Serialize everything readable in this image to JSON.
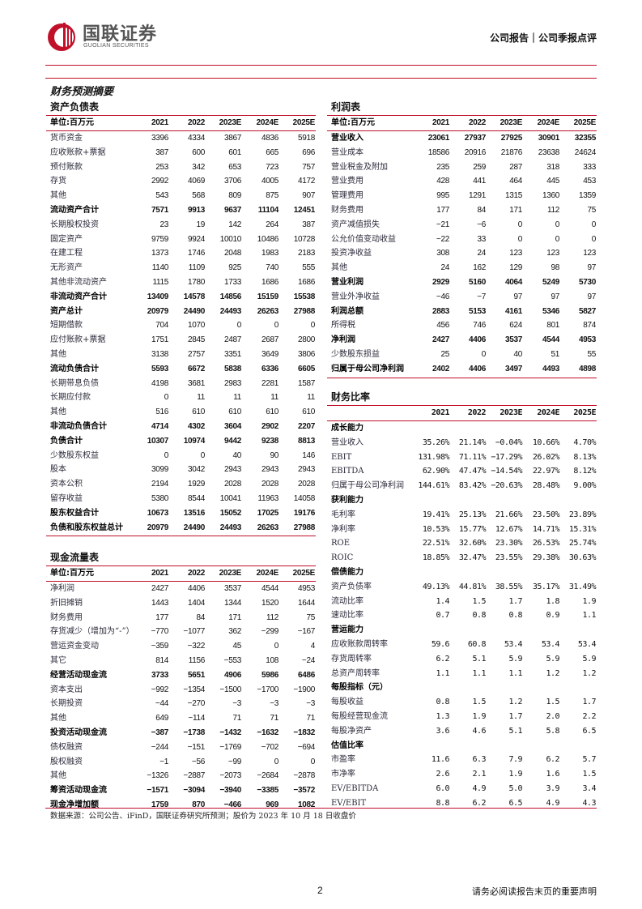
{
  "header": {
    "logo_cn": "国联证券",
    "logo_en": "GUOLIAN SECURITIES",
    "category": "公司报告｜公司季报点评",
    "brand_color": "#c0102a"
  },
  "section_title": "财务预测摘要",
  "years": [
    "2021",
    "2022",
    "2023E",
    "2024E",
    "2025E"
  ],
  "balance_sheet": {
    "title": "资产负债表",
    "unit": "单位:百万元",
    "rows": [
      {
        "label": "货币资金",
        "values": [
          "3396",
          "4334",
          "3867",
          "4836",
          "5918"
        ]
      },
      {
        "label": "应收账款+票据",
        "values": [
          "387",
          "600",
          "601",
          "665",
          "696"
        ]
      },
      {
        "label": "预付账款",
        "values": [
          "253",
          "342",
          "653",
          "723",
          "757"
        ]
      },
      {
        "label": "存货",
        "values": [
          "2992",
          "4069",
          "3706",
          "4005",
          "4172"
        ]
      },
      {
        "label": "其他",
        "values": [
          "543",
          "568",
          "809",
          "875",
          "907"
        ]
      },
      {
        "label": "流动资产合计",
        "values": [
          "7571",
          "9913",
          "9637",
          "11104",
          "12451"
        ],
        "bold": true
      },
      {
        "label": "长期股权投资",
        "values": [
          "23",
          "19",
          "142",
          "264",
          "387"
        ]
      },
      {
        "label": "固定资产",
        "values": [
          "9759",
          "9924",
          "10010",
          "10486",
          "10728"
        ]
      },
      {
        "label": "在建工程",
        "values": [
          "1373",
          "1746",
          "2048",
          "1983",
          "2183"
        ]
      },
      {
        "label": "无形资产",
        "values": [
          "1140",
          "1109",
          "925",
          "740",
          "555"
        ]
      },
      {
        "label": "其他非流动资产",
        "values": [
          "1115",
          "1780",
          "1733",
          "1686",
          "1686"
        ]
      },
      {
        "label": "非流动资产合计",
        "values": [
          "13409",
          "14578",
          "14856",
          "15159",
          "15538"
        ],
        "bold": true
      },
      {
        "label": "资产总计",
        "values": [
          "20979",
          "24490",
          "24493",
          "26263",
          "27988"
        ],
        "bold": true
      },
      {
        "label": "短期借款",
        "values": [
          "704",
          "1070",
          "0",
          "0",
          "0"
        ]
      },
      {
        "label": "应付账款+票据",
        "values": [
          "1751",
          "2845",
          "2487",
          "2687",
          "2800"
        ]
      },
      {
        "label": "其他",
        "values": [
          "3138",
          "2757",
          "3351",
          "3649",
          "3806"
        ]
      },
      {
        "label": "流动负债合计",
        "values": [
          "5593",
          "6672",
          "5838",
          "6336",
          "6605"
        ],
        "bold": true
      },
      {
        "label": "长期带息负债",
        "values": [
          "4198",
          "3681",
          "2983",
          "2281",
          "1587"
        ]
      },
      {
        "label": "长期应付款",
        "values": [
          "0",
          "11",
          "11",
          "11",
          "11"
        ]
      },
      {
        "label": "其他",
        "values": [
          "516",
          "610",
          "610",
          "610",
          "610"
        ]
      },
      {
        "label": "非流动负债合计",
        "values": [
          "4714",
          "4302",
          "3604",
          "2902",
          "2207"
        ],
        "bold": true
      },
      {
        "label": "负债合计",
        "values": [
          "10307",
          "10974",
          "9442",
          "9238",
          "8813"
        ],
        "bold": true
      },
      {
        "label": "少数股东权益",
        "values": [
          "0",
          "0",
          "40",
          "90",
          "146"
        ]
      },
      {
        "label": "股本",
        "values": [
          "3099",
          "3042",
          "2943",
          "2943",
          "2943"
        ]
      },
      {
        "label": "资本公积",
        "values": [
          "2194",
          "1929",
          "2028",
          "2028",
          "2028"
        ]
      },
      {
        "label": "留存收益",
        "values": [
          "5380",
          "8544",
          "10041",
          "11963",
          "14058"
        ]
      },
      {
        "label": "股东权益合计",
        "values": [
          "10673",
          "13516",
          "15052",
          "17025",
          "19176"
        ],
        "bold": true
      },
      {
        "label": "负债和股东权益总计",
        "values": [
          "20979",
          "24490",
          "24493",
          "26263",
          "27988"
        ],
        "bold": true
      }
    ]
  },
  "income_statement": {
    "title": "利润表",
    "unit": "单位:百万元",
    "rows": [
      {
        "label": "营业收入",
        "values": [
          "23061",
          "27937",
          "27925",
          "30901",
          "32355"
        ],
        "bold": true
      },
      {
        "label": "营业成本",
        "values": [
          "18586",
          "20916",
          "21876",
          "23638",
          "24624"
        ]
      },
      {
        "label": "营业税金及附加",
        "values": [
          "235",
          "259",
          "287",
          "318",
          "333"
        ]
      },
      {
        "label": "营业费用",
        "values": [
          "428",
          "441",
          "464",
          "445",
          "453"
        ]
      },
      {
        "label": "管理费用",
        "values": [
          "995",
          "1291",
          "1315",
          "1360",
          "1359"
        ]
      },
      {
        "label": "财务费用",
        "values": [
          "177",
          "84",
          "171",
          "112",
          "75"
        ]
      },
      {
        "label": "资产减值损失",
        "values": [
          "−21",
          "−6",
          "0",
          "0",
          "0"
        ]
      },
      {
        "label": "公允价值变动收益",
        "values": [
          "−22",
          "33",
          "0",
          "0",
          "0"
        ]
      },
      {
        "label": "投资净收益",
        "values": [
          "308",
          "24",
          "123",
          "123",
          "123"
        ]
      },
      {
        "label": "其他",
        "values": [
          "24",
          "162",
          "129",
          "98",
          "97"
        ]
      },
      {
        "label": "营业利润",
        "values": [
          "2929",
          "5160",
          "4064",
          "5249",
          "5730"
        ],
        "bold": true
      },
      {
        "label": "营业外净收益",
        "values": [
          "−46",
          "−7",
          "97",
          "97",
          "97"
        ]
      },
      {
        "label": "利润总额",
        "values": [
          "2883",
          "5153",
          "4161",
          "5346",
          "5827"
        ],
        "bold": true
      },
      {
        "label": "所得税",
        "values": [
          "456",
          "746",
          "624",
          "801",
          "874"
        ]
      },
      {
        "label": "净利润",
        "values": [
          "2427",
          "4406",
          "3537",
          "4544",
          "4953"
        ],
        "bold": true
      },
      {
        "label": "少数股东损益",
        "values": [
          "25",
          "0",
          "40",
          "51",
          "55"
        ]
      },
      {
        "label": "归属于母公司净利润",
        "values": [
          "2402",
          "4406",
          "3497",
          "4493",
          "4898"
        ],
        "bold": true
      }
    ]
  },
  "ratios": {
    "title": "财务比率",
    "rows": [
      {
        "label": "成长能力",
        "section": true
      },
      {
        "label": "营业收入",
        "values": [
          "35.26%",
          "21.14%",
          "−0.04%",
          "10.66%",
          "4.70%"
        ]
      },
      {
        "label": "EBIT",
        "values": [
          "131.98%",
          "71.11%",
          "−17.29%",
          "26.02%",
          "8.13%"
        ]
      },
      {
        "label": "EBITDA",
        "values": [
          "62.90%",
          "47.47%",
          "−14.54%",
          "22.97%",
          "8.12%"
        ]
      },
      {
        "label": "归属于母公司净利润",
        "values": [
          "144.61%",
          "83.42%",
          "−20.63%",
          "28.48%",
          "9.00%"
        ]
      },
      {
        "label": "获利能力",
        "section": true
      },
      {
        "label": "毛利率",
        "values": [
          "19.41%",
          "25.13%",
          "21.66%",
          "23.50%",
          "23.89%"
        ]
      },
      {
        "label": "净利率",
        "values": [
          "10.53%",
          "15.77%",
          "12.67%",
          "14.71%",
          "15.31%"
        ]
      },
      {
        "label": "ROE",
        "values": [
          "22.51%",
          "32.60%",
          "23.30%",
          "26.53%",
          "25.74%"
        ]
      },
      {
        "label": "ROIC",
        "values": [
          "18.85%",
          "32.47%",
          "23.55%",
          "29.38%",
          "30.63%"
        ]
      },
      {
        "label": "偿债能力",
        "section": true
      },
      {
        "label": "资产负债率",
        "values": [
          "49.13%",
          "44.81%",
          "38.55%",
          "35.17%",
          "31.49%"
        ]
      },
      {
        "label": "流动比率",
        "values": [
          "1.4",
          "1.5",
          "1.7",
          "1.8",
          "1.9"
        ]
      },
      {
        "label": "速动比率",
        "values": [
          "0.7",
          "0.8",
          "0.8",
          "0.9",
          "1.1"
        ]
      },
      {
        "label": "营运能力",
        "section": true
      },
      {
        "label": "应收账款周转率",
        "values": [
          "59.6",
          "60.8",
          "53.4",
          "53.4",
          "53.4"
        ]
      },
      {
        "label": "存货周转率",
        "values": [
          "6.2",
          "5.1",
          "5.9",
          "5.9",
          "5.9"
        ]
      },
      {
        "label": "总资产周转率",
        "values": [
          "1.1",
          "1.1",
          "1.1",
          "1.2",
          "1.2"
        ]
      },
      {
        "label": "每股指标（元）",
        "section": true
      },
      {
        "label": "每股收益",
        "values": [
          "0.8",
          "1.5",
          "1.2",
          "1.5",
          "1.7"
        ]
      },
      {
        "label": "每股经营现金流",
        "values": [
          "1.3",
          "1.9",
          "1.7",
          "2.0",
          "2.2"
        ]
      },
      {
        "label": "每股净资产",
        "values": [
          "3.6",
          "4.6",
          "5.1",
          "5.8",
          "6.5"
        ]
      },
      {
        "label": "估值比率",
        "section": true
      },
      {
        "label": "市盈率",
        "values": [
          "11.6",
          "6.3",
          "7.9",
          "6.2",
          "5.7"
        ]
      },
      {
        "label": "市净率",
        "values": [
          "2.6",
          "2.1",
          "1.9",
          "1.6",
          "1.5"
        ]
      },
      {
        "label": "EV/EBITDA",
        "values": [
          "6.0",
          "4.9",
          "5.0",
          "3.9",
          "3.4"
        ]
      },
      {
        "label": "EV/EBIT",
        "values": [
          "8.8",
          "6.2",
          "6.5",
          "4.9",
          "4.3"
        ]
      }
    ]
  },
  "cash_flow": {
    "title": "现金流量表",
    "unit": "单位:百万元",
    "rows": [
      {
        "label": "净利润",
        "values": [
          "2427",
          "4406",
          "3537",
          "4544",
          "4953"
        ]
      },
      {
        "label": "折旧摊销",
        "values": [
          "1443",
          "1404",
          "1344",
          "1520",
          "1644"
        ]
      },
      {
        "label": "财务费用",
        "values": [
          "177",
          "84",
          "171",
          "112",
          "75"
        ]
      },
      {
        "label": "存货减少（增加为“-”）",
        "values": [
          "−770",
          "−1077",
          "362",
          "−299",
          "−167"
        ]
      },
      {
        "label": "营运资金变动",
        "values": [
          "−359",
          "−322",
          "45",
          "0",
          "4"
        ]
      },
      {
        "label": "其它",
        "values": [
          "814",
          "1156",
          "−553",
          "108",
          "−24"
        ]
      },
      {
        "label": "经营活动现金流",
        "values": [
          "3733",
          "5651",
          "4906",
          "5986",
          "6486"
        ],
        "bold": true
      },
      {
        "label": "资本支出",
        "values": [
          "−992",
          "−1354",
          "−1500",
          "−1700",
          "−1900"
        ]
      },
      {
        "label": "长期投资",
        "values": [
          "−44",
          "−270",
          "−3",
          "−3",
          "−3"
        ]
      },
      {
        "label": "其他",
        "values": [
          "649",
          "−114",
          "71",
          "71",
          "71"
        ]
      },
      {
        "label": "投资活动现金流",
        "values": [
          "−387",
          "−1738",
          "−1432",
          "−1632",
          "−1832"
        ],
        "bold": true
      },
      {
        "label": "债权融资",
        "values": [
          "−244",
          "−151",
          "−1769",
          "−702",
          "−694"
        ]
      },
      {
        "label": "股权融资",
        "values": [
          "−1",
          "−56",
          "−99",
          "0",
          "0"
        ]
      },
      {
        "label": "其他",
        "values": [
          "−1326",
          "−2887",
          "−2073",
          "−2684",
          "−2878"
        ]
      },
      {
        "label": "筹资活动现金流",
        "values": [
          "−1571",
          "−3094",
          "−3940",
          "−3385",
          "−3572"
        ],
        "bold": true
      },
      {
        "label": "现金净增加额",
        "values": [
          "1759",
          "870",
          "−466",
          "969",
          "1082"
        ],
        "bold": true
      }
    ]
  },
  "source": "数据来源：公司公告、iFinD，国联证券研究所预测；股价为 2023 年 10 月 18 日收盘价",
  "footer": {
    "page": "2",
    "disclaimer": "请务必阅读报告末页的重要声明"
  }
}
